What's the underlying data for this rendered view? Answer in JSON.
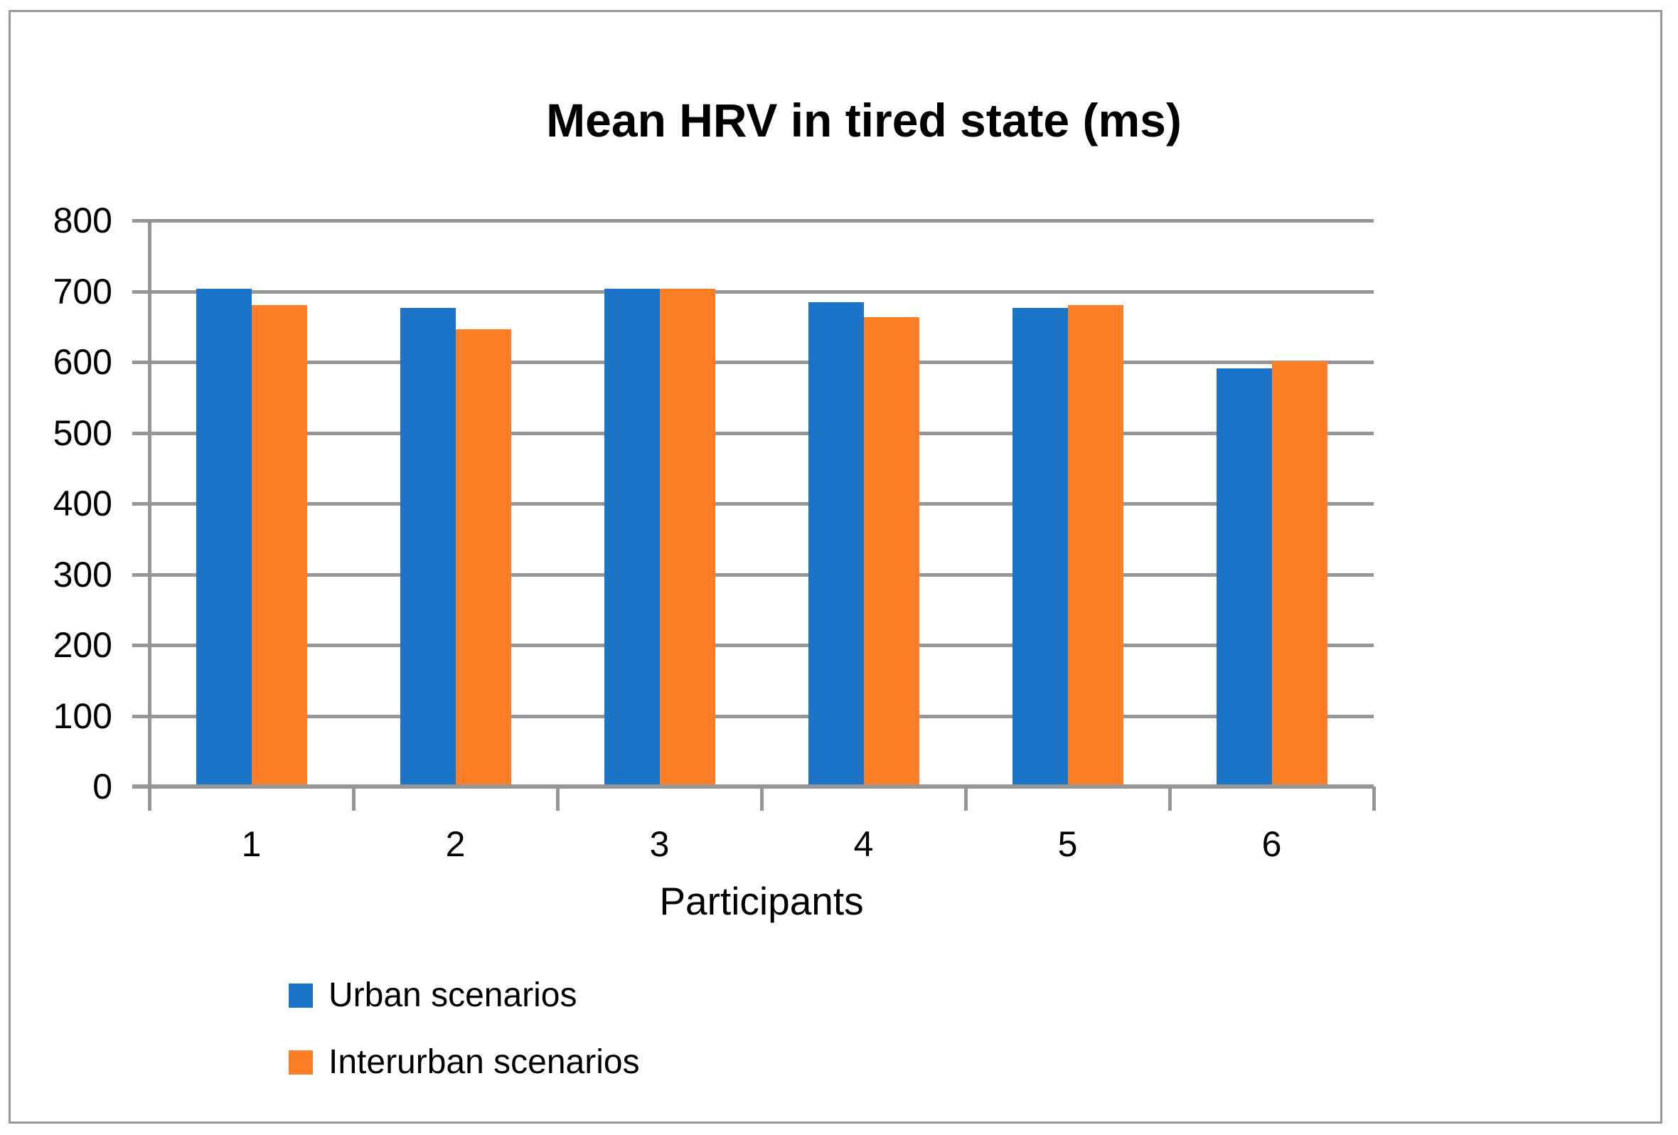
{
  "window": {
    "background": "#FFFFFF",
    "border_color": "#999999"
  },
  "chart_data": {
    "type": "bar",
    "title": "Mean HRV in tired state (ms)",
    "xlabel": "Participants",
    "ylabel": "",
    "categories": [
      "1",
      "2",
      "3",
      "4",
      "5",
      "6"
    ],
    "series": [
      {
        "name": "Urban scenarios",
        "color": "#1B74C8",
        "values": [
          704,
          676,
          704,
          684,
          676,
          591
        ]
      },
      {
        "name": "Interurban scenarios",
        "color": "#FC7E27",
        "values": [
          680,
          646,
          704,
          663,
          680,
          601
        ]
      }
    ],
    "ylim": [
      0,
      800
    ],
    "ytick_step": 100,
    "yticks": [
      800,
      700,
      600,
      500,
      400,
      300,
      200,
      100,
      0
    ],
    "grid": "horizontal",
    "gridline_color": "#969696",
    "axis_color": "#969696",
    "legend_position": "bottom-left"
  }
}
